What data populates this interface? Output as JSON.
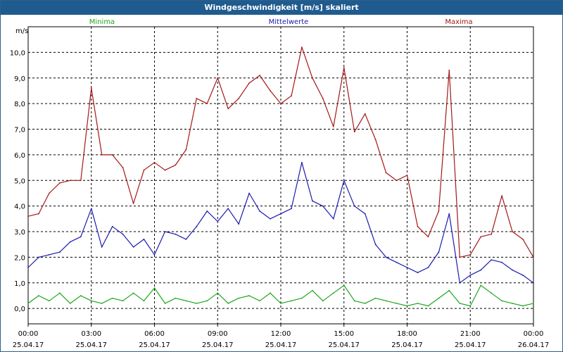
{
  "window": {
    "title": "Windgeschwindigkeit [m/s] skaliert"
  },
  "chart_data": {
    "type": "line",
    "title": "Windgeschwindigkeit [m/s] skaliert",
    "ylabel": "m/s",
    "xlabel": "",
    "ylim": [
      -0.6,
      11.0
    ],
    "yticks": [
      "0,0",
      "1,0",
      "2,0",
      "3,0",
      "4,0",
      "5,0",
      "6,0",
      "7,0",
      "8,0",
      "9,0",
      "10,0"
    ],
    "xticks": [
      {
        "time": "00:00",
        "date": "25.04.17"
      },
      {
        "time": "03:00",
        "date": "25.04.17"
      },
      {
        "time": "06:00",
        "date": "25.04.17"
      },
      {
        "time": "09:00",
        "date": "25.04.17"
      },
      {
        "time": "12:00",
        "date": "25.04.17"
      },
      {
        "time": "15:00",
        "date": "25.04.17"
      },
      {
        "time": "18:00",
        "date": "25.04.17"
      },
      {
        "time": "21:00",
        "date": "25.04.17"
      },
      {
        "time": "00:00",
        "date": "26.04.17"
      }
    ],
    "grid": true,
    "legend_position": "top",
    "series": [
      {
        "name": "Minima",
        "color": "#1fa51f",
        "x": [
          0,
          0.5,
          1,
          1.5,
          2,
          2.5,
          3,
          3.5,
          4,
          4.5,
          5,
          5.5,
          6,
          6.5,
          7,
          7.5,
          8,
          8.5,
          9,
          9.5,
          10,
          10.5,
          11,
          11.5,
          12,
          12.5,
          13,
          13.5,
          14,
          14.5,
          15,
          15.5,
          16,
          16.5,
          17,
          17.5,
          18,
          18.5,
          19,
          19.5,
          20,
          20.5,
          21,
          21.5,
          22,
          22.5,
          23,
          23.5,
          24
        ],
        "values": [
          0.2,
          0.5,
          0.3,
          0.6,
          0.2,
          0.5,
          0.3,
          0.2,
          0.4,
          0.3,
          0.6,
          0.3,
          0.8,
          0.2,
          0.4,
          0.3,
          0.2,
          0.3,
          0.6,
          0.2,
          0.4,
          0.5,
          0.3,
          0.6,
          0.2,
          0.3,
          0.4,
          0.7,
          0.3,
          0.6,
          0.9,
          0.3,
          0.2,
          0.4,
          0.3,
          0.2,
          0.1,
          0.2,
          0.1,
          0.4,
          0.7,
          0.2,
          0.1,
          0.9,
          0.6,
          0.3,
          0.2,
          0.1,
          0.2
        ]
      },
      {
        "name": "Mittelwerte",
        "color": "#1b1bb0",
        "x": [
          0,
          0.5,
          1,
          1.5,
          2,
          2.5,
          3,
          3.5,
          4,
          4.5,
          5,
          5.5,
          6,
          6.5,
          7,
          7.5,
          8,
          8.5,
          9,
          9.5,
          10,
          10.5,
          11,
          11.5,
          12,
          12.5,
          13,
          13.5,
          14,
          14.5,
          15,
          15.5,
          16,
          16.5,
          17,
          17.5,
          18,
          18.5,
          19,
          19.5,
          20,
          20.5,
          21,
          21.5,
          22,
          22.5,
          23,
          23.5,
          24
        ],
        "values": [
          1.6,
          2.0,
          2.1,
          2.2,
          2.6,
          2.8,
          3.9,
          2.4,
          3.2,
          2.9,
          2.4,
          2.7,
          2.1,
          3.0,
          2.9,
          2.7,
          3.2,
          3.8,
          3.4,
          3.9,
          3.3,
          4.5,
          3.8,
          3.5,
          3.7,
          3.9,
          5.7,
          4.2,
          4.0,
          3.5,
          5.0,
          4.0,
          3.7,
          2.5,
          2.0,
          1.8,
          1.6,
          1.4,
          1.6,
          2.2,
          3.7,
          1.0,
          1.3,
          1.5,
          1.9,
          1.8,
          1.5,
          1.3,
          1.0
        ]
      },
      {
        "name": "Maxima",
        "color": "#a51717",
        "x": [
          0,
          0.5,
          1,
          1.5,
          2,
          2.5,
          3,
          3.5,
          4,
          4.5,
          5,
          5.5,
          6,
          6.5,
          7,
          7.5,
          8,
          8.5,
          9,
          9.5,
          10,
          10.5,
          11,
          11.5,
          12,
          12.5,
          13,
          13.5,
          14,
          14.5,
          15,
          15.5,
          16,
          16.5,
          17,
          17.5,
          18,
          18.5,
          19,
          19.5,
          20,
          20.5,
          21,
          21.5,
          22,
          22.5,
          23,
          23.5,
          24
        ],
        "values": [
          3.6,
          3.7,
          4.5,
          4.9,
          5.0,
          5.0,
          8.6,
          6.0,
          6.0,
          5.5,
          4.1,
          5.4,
          5.7,
          5.4,
          5.6,
          6.2,
          8.2,
          8.0,
          9.0,
          7.8,
          8.2,
          8.8,
          9.1,
          8.5,
          8.0,
          8.3,
          10.2,
          9.0,
          8.2,
          7.1,
          9.4,
          6.9,
          7.6,
          6.6,
          5.3,
          5.0,
          5.2,
          3.2,
          2.8,
          3.8,
          9.3,
          2.0,
          2.1,
          2.8,
          2.9,
          4.4,
          3.0,
          2.7,
          2.0
        ]
      }
    ]
  }
}
